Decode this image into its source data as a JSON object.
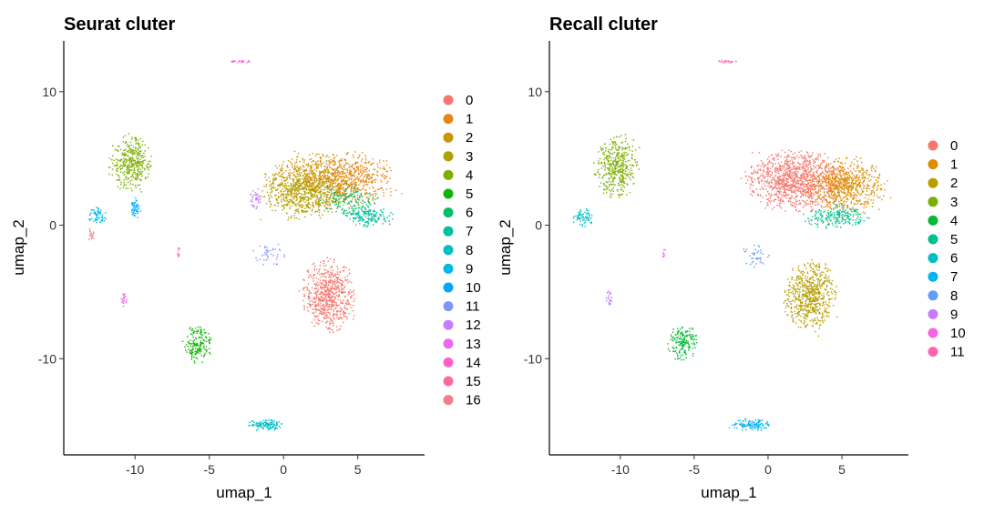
{
  "chart_data": [
    {
      "type": "scatter",
      "title": "Seurat cluter",
      "xlabel": "umap_1",
      "ylabel": "umap_2",
      "xlim": [
        -14.8,
        9.5
      ],
      "ylim": [
        -17.2,
        13.8
      ],
      "xticks": [
        -10,
        -5,
        0,
        5
      ],
      "yticks": [
        10,
        0,
        -10
      ],
      "xtick_labels": [
        "-10",
        "-5",
        "0",
        "5"
      ],
      "ytick_labels": [
        "10",
        "0",
        "-10"
      ],
      "legend_position": "right",
      "legend": [
        "0",
        "1",
        "2",
        "3",
        "4",
        "5",
        "6",
        "7",
        "8",
        "9",
        "10",
        "11",
        "12",
        "13",
        "14",
        "15",
        "16"
      ],
      "colors": [
        "#F8766D",
        "#E68613",
        "#CD9600",
        "#ABA300",
        "#7CAE00",
        "#0CB702",
        "#00BE67",
        "#00C19A",
        "#00BFC4",
        "#00B8E7",
        "#00A9FF",
        "#8494FF",
        "#C77CFF",
        "#ED68ED",
        "#FF61CC",
        "#FF68A1",
        "#F27D8C"
      ],
      "clusters": [
        {
          "label": "0",
          "cx": 3.0,
          "cy": -5.2,
          "rx": 1.8,
          "ry": 2.7,
          "n": 650
        },
        {
          "label": "1",
          "cx": 4.3,
          "cy": 3.5,
          "rx": 3.4,
          "ry": 2.0,
          "n": 600
        },
        {
          "label": "2",
          "cx": 1.8,
          "cy": 3.3,
          "rx": 3.2,
          "ry": 2.2,
          "n": 600
        },
        {
          "label": "3",
          "cx": 1.2,
          "cy": 2.4,
          "rx": 2.8,
          "ry": 2.0,
          "n": 450
        },
        {
          "label": "4",
          "cx": -10.3,
          "cy": 4.6,
          "rx": 1.5,
          "ry": 2.2,
          "n": 380
        },
        {
          "label": "5",
          "cx": -5.8,
          "cy": -8.8,
          "rx": 1.0,
          "ry": 1.3,
          "n": 170
        },
        {
          "label": "6",
          "cx": 4.2,
          "cy": 2.0,
          "rx": 2.2,
          "ry": 1.2,
          "n": 150
        },
        {
          "label": "7",
          "cx": 5.7,
          "cy": 0.7,
          "rx": 1.6,
          "ry": 0.8,
          "n": 160
        },
        {
          "label": "8",
          "cx": -1.2,
          "cy": -14.9,
          "rx": 1.4,
          "ry": 0.45,
          "n": 120
        },
        {
          "label": "9",
          "cx": -12.6,
          "cy": 0.8,
          "rx": 0.7,
          "ry": 0.6,
          "n": 60
        },
        {
          "label": "10",
          "cx": -10.0,
          "cy": 1.3,
          "rx": 0.35,
          "ry": 0.8,
          "n": 50
        },
        {
          "label": "11",
          "cx": -1.0,
          "cy": -2.2,
          "rx": 1.0,
          "ry": 1.0,
          "n": 40
        },
        {
          "label": "12",
          "cx": -1.9,
          "cy": 2.0,
          "rx": 0.4,
          "ry": 0.8,
          "n": 40
        },
        {
          "label": "13",
          "cx": -10.8,
          "cy": -5.5,
          "rx": 0.2,
          "ry": 0.6,
          "n": 22
        },
        {
          "label": "14",
          "cx": -2.9,
          "cy": 12.3,
          "rx": 0.7,
          "ry": 0.12,
          "n": 22
        },
        {
          "label": "15",
          "cx": -7.1,
          "cy": -2.0,
          "rx": 0.1,
          "ry": 0.5,
          "n": 10
        },
        {
          "label": "16",
          "cx": -13.0,
          "cy": -0.7,
          "rx": 0.25,
          "ry": 0.5,
          "n": 18
        }
      ]
    },
    {
      "type": "scatter",
      "title": "Recall cluter",
      "xlabel": "umap_1",
      "ylabel": "umap_2",
      "xlim": [
        -14.8,
        9.5
      ],
      "ylim": [
        -17.2,
        13.8
      ],
      "xticks": [
        -10,
        -5,
        0,
        5
      ],
      "yticks": [
        10,
        0,
        -10
      ],
      "xtick_labels": [
        "-10",
        "-5",
        "0",
        "5"
      ],
      "ytick_labels": [
        "10",
        "0",
        "-10"
      ],
      "legend_position": "right",
      "legend": [
        "0",
        "1",
        "2",
        "3",
        "4",
        "5",
        "6",
        "7",
        "8",
        "9",
        "10",
        "11"
      ],
      "colors": [
        "#F8766D",
        "#DE8C00",
        "#B79F00",
        "#7CAE00",
        "#00BA38",
        "#00C08B",
        "#00BFC4",
        "#00B4F0",
        "#619CFF",
        "#C77CFF",
        "#F564E3",
        "#FF64B0"
      ],
      "clusters": [
        {
          "label": "0",
          "cx": 1.8,
          "cy": 3.4,
          "rx": 3.5,
          "ry": 2.3,
          "n": 1100
        },
        {
          "label": "1",
          "cx": 5.3,
          "cy": 3.0,
          "rx": 2.6,
          "ry": 2.1,
          "n": 650
        },
        {
          "label": "2",
          "cx": 2.8,
          "cy": -5.2,
          "rx": 1.8,
          "ry": 2.7,
          "n": 650
        },
        {
          "label": "3",
          "cx": -10.3,
          "cy": 4.5,
          "rx": 1.5,
          "ry": 2.4,
          "n": 420
        },
        {
          "label": "4",
          "cx": -5.8,
          "cy": -8.8,
          "rx": 1.0,
          "ry": 1.3,
          "n": 170
        },
        {
          "label": "5",
          "cx": 4.6,
          "cy": 0.7,
          "rx": 2.2,
          "ry": 0.9,
          "n": 210
        },
        {
          "label": "6",
          "cx": -12.6,
          "cy": 0.6,
          "rx": 0.75,
          "ry": 0.7,
          "n": 70
        },
        {
          "label": "7",
          "cx": -1.2,
          "cy": -14.9,
          "rx": 1.4,
          "ry": 0.45,
          "n": 120
        },
        {
          "label": "8",
          "cx": -0.8,
          "cy": -2.2,
          "rx": 1.0,
          "ry": 1.0,
          "n": 40
        },
        {
          "label": "9",
          "cx": -10.8,
          "cy": -5.5,
          "rx": 0.2,
          "ry": 0.6,
          "n": 22
        },
        {
          "label": "10",
          "cx": -7.1,
          "cy": -2.0,
          "rx": 0.1,
          "ry": 0.5,
          "n": 10
        },
        {
          "label": "11",
          "cx": -2.9,
          "cy": 12.3,
          "rx": 0.7,
          "ry": 0.12,
          "n": 22
        }
      ]
    }
  ]
}
